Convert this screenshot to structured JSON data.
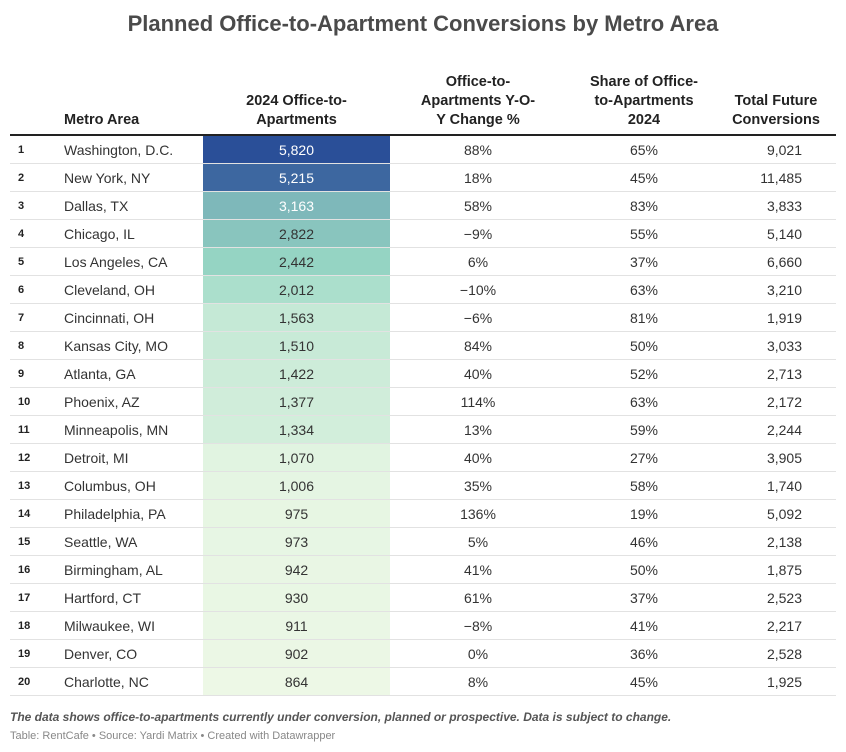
{
  "title": "Planned Office-to-Apartment Conversions by Metro Area",
  "notes": "The data shows office-to-apartments currently under conversion, planned or prospective. Data is subject to change.",
  "credits": "Table: RentCafe • Source: Yardi Matrix • Created with Datawrapper",
  "chart_data": {
    "type": "table",
    "columns": [
      "",
      "Metro Area",
      "2024 Office-to-Apartments",
      "Office-to-Apartments Y-O-Y Change %",
      "Share of Office-to-Apartments 2024",
      "Total Future Conversions"
    ],
    "heatmap_column": "2024 Office-to-Apartments",
    "heatmap_colors": {
      "low": "#edf8e6",
      "mid": "#98d8c4",
      "high": "#2a4f98"
    },
    "rows": [
      {
        "rank": "1",
        "metro": "Washington, D.C.",
        "value": 5820,
        "value_label": "5,820",
        "yoy": "88%",
        "share": "65%",
        "total": "9,021"
      },
      {
        "rank": "2",
        "metro": "New York, NY",
        "value": 5215,
        "value_label": "5,215",
        "yoy": "18%",
        "share": "45%",
        "total": "11,485"
      },
      {
        "rank": "3",
        "metro": "Dallas, TX",
        "value": 3163,
        "value_label": "3,163",
        "yoy": "58%",
        "share": "83%",
        "total": "3,833"
      },
      {
        "rank": "4",
        "metro": "Chicago, IL",
        "value": 2822,
        "value_label": "2,822",
        "yoy": "−9%",
        "share": "55%",
        "total": "5,140"
      },
      {
        "rank": "5",
        "metro": "Los Angeles, CA",
        "value": 2442,
        "value_label": "2,442",
        "yoy": "6%",
        "share": "37%",
        "total": "6,660"
      },
      {
        "rank": "6",
        "metro": "Cleveland, OH",
        "value": 2012,
        "value_label": "2,012",
        "yoy": "−10%",
        "share": "63%",
        "total": "3,210"
      },
      {
        "rank": "7",
        "metro": "Cincinnati, OH",
        "value": 1563,
        "value_label": "1,563",
        "yoy": "−6%",
        "share": "81%",
        "total": "1,919"
      },
      {
        "rank": "8",
        "metro": "Kansas City, MO",
        "value": 1510,
        "value_label": "1,510",
        "yoy": "84%",
        "share": "50%",
        "total": "3,033"
      },
      {
        "rank": "9",
        "metro": "Atlanta, GA",
        "value": 1422,
        "value_label": "1,422",
        "yoy": "40%",
        "share": "52%",
        "total": "2,713"
      },
      {
        "rank": "10",
        "metro": "Phoenix, AZ",
        "value": 1377,
        "value_label": "1,377",
        "yoy": "114%",
        "share": "63%",
        "total": "2,172"
      },
      {
        "rank": "11",
        "metro": "Minneapolis, MN",
        "value": 1334,
        "value_label": "1,334",
        "yoy": "13%",
        "share": "59%",
        "total": "2,244"
      },
      {
        "rank": "12",
        "metro": "Detroit, MI",
        "value": 1070,
        "value_label": "1,070",
        "yoy": "40%",
        "share": "27%",
        "total": "3,905"
      },
      {
        "rank": "13",
        "metro": "Columbus, OH",
        "value": 1006,
        "value_label": "1,006",
        "yoy": "35%",
        "share": "58%",
        "total": "1,740"
      },
      {
        "rank": "14",
        "metro": "Philadelphia, PA",
        "value": 975,
        "value_label": "975",
        "yoy": "136%",
        "share": "19%",
        "total": "5,092"
      },
      {
        "rank": "15",
        "metro": "Seattle, WA",
        "value": 973,
        "value_label": "973",
        "yoy": "5%",
        "share": "46%",
        "total": "2,138"
      },
      {
        "rank": "16",
        "metro": "Birmingham, AL",
        "value": 942,
        "value_label": "942",
        "yoy": "41%",
        "share": "50%",
        "total": "1,875"
      },
      {
        "rank": "17",
        "metro": "Hartford, CT",
        "value": 930,
        "value_label": "930",
        "yoy": "61%",
        "share": "37%",
        "total": "2,523"
      },
      {
        "rank": "18",
        "metro": "Milwaukee, WI",
        "value": 911,
        "value_label": "911",
        "yoy": "−8%",
        "share": "41%",
        "total": "2,217"
      },
      {
        "rank": "19",
        "metro": "Denver, CO",
        "value": 902,
        "value_label": "902",
        "yoy": "0%",
        "share": "36%",
        "total": "2,528"
      },
      {
        "rank": "20",
        "metro": "Charlotte, NC",
        "value": 864,
        "value_label": "864",
        "yoy": "8%",
        "share": "45%",
        "total": "1,925"
      }
    ]
  }
}
